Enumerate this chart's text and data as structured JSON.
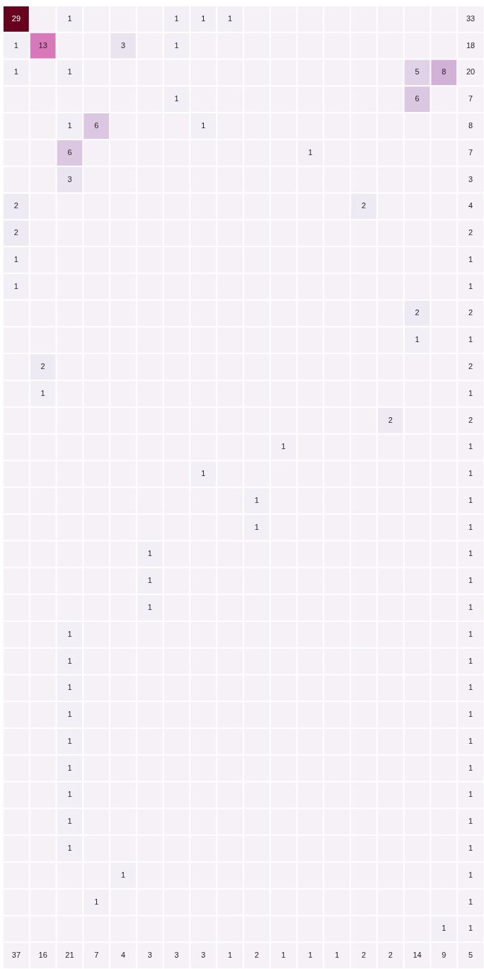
{
  "chart_data": {
    "type": "heatmap",
    "data_labels": true,
    "categories": [
      null,
      null,
      null,
      null,
      null,
      null,
      null,
      null,
      null,
      null,
      null,
      null,
      null,
      null,
      null,
      null,
      null,
      null
    ],
    "y_categories": [
      null,
      null,
      null,
      null,
      null,
      null,
      null,
      null,
      null,
      null,
      null,
      null,
      null,
      null,
      null,
      null,
      null,
      null,
      null,
      null,
      null,
      null,
      null,
      null,
      null,
      null,
      null,
      null,
      null,
      null,
      null,
      null,
      null,
      null,
      null,
      null
    ],
    "cells": [
      [
        29,
        null,
        1,
        null,
        null,
        null,
        1,
        1,
        1,
        null,
        null,
        null,
        null,
        null,
        null,
        null,
        null,
        33
      ],
      [
        1,
        13,
        null,
        null,
        3,
        null,
        1,
        null,
        null,
        null,
        null,
        null,
        null,
        null,
        null,
        null,
        null,
        18
      ],
      [
        1,
        null,
        1,
        null,
        null,
        null,
        null,
        null,
        null,
        null,
        null,
        null,
        null,
        null,
        null,
        5,
        8,
        20
      ],
      [
        null,
        null,
        null,
        null,
        null,
        null,
        1,
        null,
        null,
        null,
        null,
        null,
        null,
        null,
        null,
        6,
        null,
        7
      ],
      [
        null,
        null,
        1,
        6,
        null,
        null,
        null,
        1,
        null,
        null,
        null,
        null,
        null,
        null,
        null,
        null,
        null,
        8
      ],
      [
        null,
        null,
        6,
        null,
        null,
        null,
        null,
        null,
        null,
        null,
        null,
        1,
        null,
        null,
        null,
        null,
        null,
        7
      ],
      [
        null,
        null,
        3,
        null,
        null,
        null,
        null,
        null,
        null,
        null,
        null,
        null,
        null,
        null,
        null,
        null,
        null,
        3
      ],
      [
        2,
        null,
        null,
        null,
        null,
        null,
        null,
        null,
        null,
        null,
        null,
        null,
        null,
        2,
        null,
        null,
        null,
        4
      ],
      [
        2,
        null,
        null,
        null,
        null,
        null,
        null,
        null,
        null,
        null,
        null,
        null,
        null,
        null,
        null,
        null,
        null,
        2
      ],
      [
        1,
        null,
        null,
        null,
        null,
        null,
        null,
        null,
        null,
        null,
        null,
        null,
        null,
        null,
        null,
        null,
        null,
        1
      ],
      [
        1,
        null,
        null,
        null,
        null,
        null,
        null,
        null,
        null,
        null,
        null,
        null,
        null,
        null,
        null,
        null,
        null,
        1
      ],
      [
        null,
        null,
        null,
        null,
        null,
        null,
        null,
        null,
        null,
        null,
        null,
        null,
        null,
        null,
        null,
        2,
        null,
        2
      ],
      [
        null,
        null,
        null,
        null,
        null,
        null,
        null,
        null,
        null,
        null,
        null,
        null,
        null,
        null,
        null,
        1,
        null,
        1
      ],
      [
        null,
        2,
        null,
        null,
        null,
        null,
        null,
        null,
        null,
        null,
        null,
        null,
        null,
        null,
        null,
        null,
        null,
        2
      ],
      [
        null,
        1,
        null,
        null,
        null,
        null,
        null,
        null,
        null,
        null,
        null,
        null,
        null,
        null,
        null,
        null,
        null,
        1
      ],
      [
        null,
        null,
        null,
        null,
        null,
        null,
        null,
        null,
        null,
        null,
        null,
        null,
        null,
        null,
        2,
        null,
        null,
        2
      ],
      [
        null,
        null,
        null,
        null,
        null,
        null,
        null,
        null,
        null,
        null,
        1,
        null,
        null,
        null,
        null,
        null,
        null,
        1
      ],
      [
        null,
        null,
        null,
        null,
        null,
        null,
        null,
        1,
        null,
        null,
        null,
        null,
        null,
        null,
        null,
        null,
        null,
        1
      ],
      [
        null,
        null,
        null,
        null,
        null,
        null,
        null,
        null,
        null,
        1,
        null,
        null,
        null,
        null,
        null,
        null,
        null,
        1
      ],
      [
        null,
        null,
        null,
        null,
        null,
        null,
        null,
        null,
        null,
        1,
        null,
        null,
        null,
        null,
        null,
        null,
        null,
        1
      ],
      [
        null,
        null,
        null,
        null,
        null,
        1,
        null,
        null,
        null,
        null,
        null,
        null,
        null,
        null,
        null,
        null,
        null,
        1
      ],
      [
        null,
        null,
        null,
        null,
        null,
        1,
        null,
        null,
        null,
        null,
        null,
        null,
        null,
        null,
        null,
        null,
        null,
        1
      ],
      [
        null,
        null,
        null,
        null,
        null,
        1,
        null,
        null,
        null,
        null,
        null,
        null,
        null,
        null,
        null,
        null,
        null,
        1
      ],
      [
        null,
        null,
        1,
        null,
        null,
        null,
        null,
        null,
        null,
        null,
        null,
        null,
        null,
        null,
        null,
        null,
        null,
        1
      ],
      [
        null,
        null,
        1,
        null,
        null,
        null,
        null,
        null,
        null,
        null,
        null,
        null,
        null,
        null,
        null,
        null,
        null,
        1
      ],
      [
        null,
        null,
        1,
        null,
        null,
        null,
        null,
        null,
        null,
        null,
        null,
        null,
        null,
        null,
        null,
        null,
        null,
        1
      ],
      [
        null,
        null,
        1,
        null,
        null,
        null,
        null,
        null,
        null,
        null,
        null,
        null,
        null,
        null,
        null,
        null,
        null,
        1
      ],
      [
        null,
        null,
        1,
        null,
        null,
        null,
        null,
        null,
        null,
        null,
        null,
        null,
        null,
        null,
        null,
        null,
        null,
        1
      ],
      [
        null,
        null,
        1,
        null,
        null,
        null,
        null,
        null,
        null,
        null,
        null,
        null,
        null,
        null,
        null,
        null,
        null,
        1
      ],
      [
        null,
        null,
        1,
        null,
        null,
        null,
        null,
        null,
        null,
        null,
        null,
        null,
        null,
        null,
        null,
        null,
        null,
        1
      ],
      [
        null,
        null,
        1,
        null,
        null,
        null,
        null,
        null,
        null,
        null,
        null,
        null,
        null,
        null,
        null,
        null,
        null,
        1
      ],
      [
        null,
        null,
        1,
        null,
        null,
        null,
        null,
        null,
        null,
        null,
        null,
        null,
        null,
        null,
        null,
        null,
        null,
        1
      ],
      [
        null,
        null,
        null,
        null,
        1,
        null,
        null,
        null,
        null,
        null,
        null,
        null,
        null,
        null,
        null,
        null,
        null,
        1
      ],
      [
        null,
        null,
        null,
        1,
        null,
        null,
        null,
        null,
        null,
        null,
        null,
        null,
        null,
        null,
        null,
        null,
        null,
        1
      ],
      [
        null,
        null,
        null,
        null,
        null,
        null,
        null,
        null,
        null,
        null,
        null,
        null,
        null,
        null,
        null,
        null,
        1,
        1
      ],
      [
        37,
        16,
        21,
        7,
        4,
        3,
        3,
        3,
        1,
        2,
        1,
        1,
        1,
        2,
        2,
        14,
        9,
        5
      ]
    ]
  }
}
